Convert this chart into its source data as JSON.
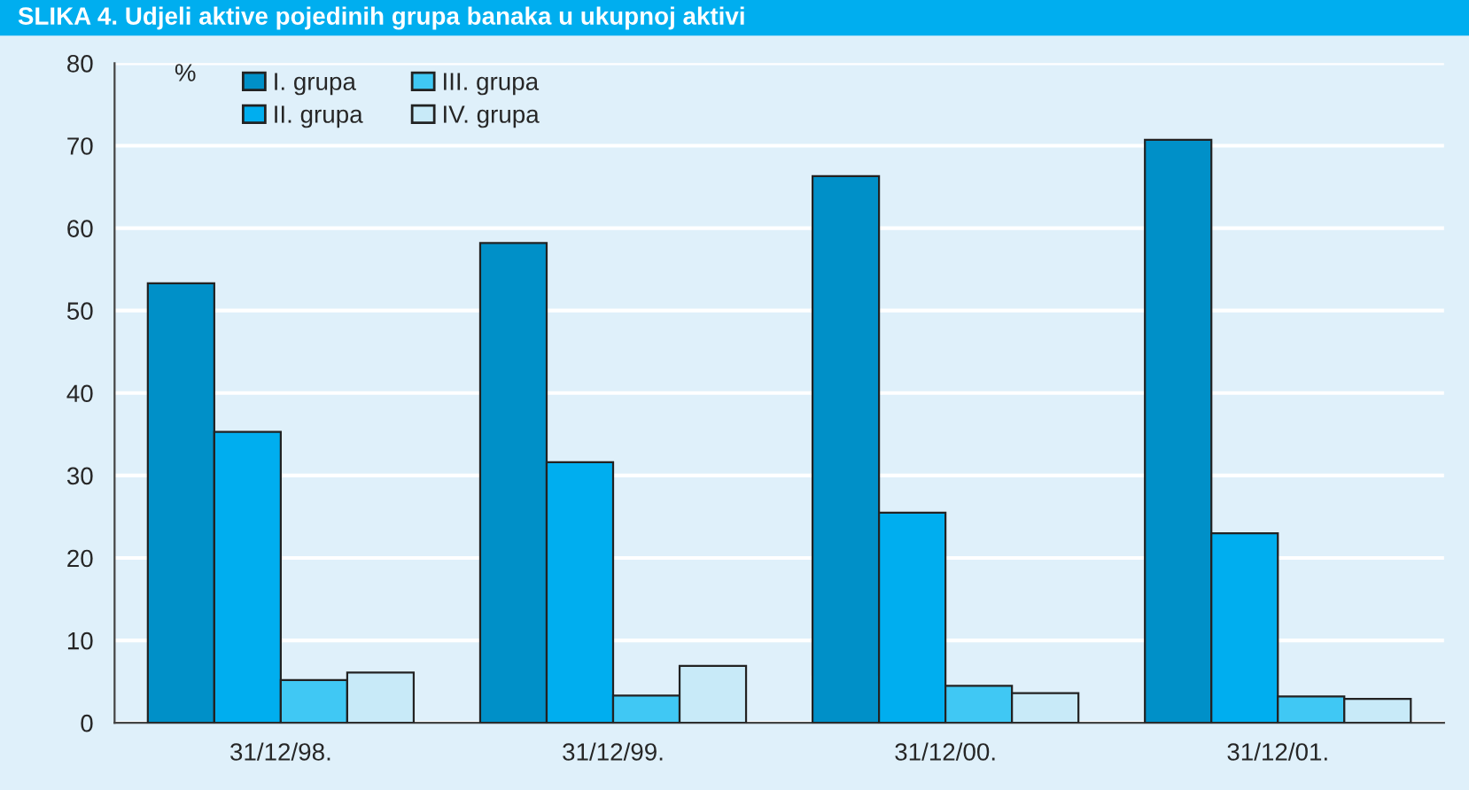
{
  "chart_data": {
    "type": "bar",
    "title": "SLIKA 4. Udjeli aktive pojedinih grupa banaka u ukupnoj aktivi",
    "ylabel": "%",
    "categories": [
      "31/12/98.",
      "31/12/99.",
      "31/12/00.",
      "31/12/01."
    ],
    "series": [
      {
        "name": "I. grupa",
        "color": "#0090c8",
        "values": [
          53.3,
          58.2,
          66.3,
          70.7
        ]
      },
      {
        "name": "II. grupa",
        "color": "#00aeef",
        "values": [
          35.3,
          31.6,
          25.5,
          23.0
        ]
      },
      {
        "name": "III. grupa",
        "color": "#40c8f4",
        "values": [
          5.2,
          3.3,
          4.5,
          3.2
        ]
      },
      {
        "name": "IV. grupa",
        "color": "#c8eaf8",
        "values": [
          6.1,
          6.9,
          3.6,
          2.9
        ]
      }
    ],
    "ylim": [
      0,
      80
    ],
    "yticks": [
      0,
      10,
      20,
      30,
      40,
      50,
      60,
      70,
      80
    ],
    "grid": "y",
    "legend": "top left"
  }
}
